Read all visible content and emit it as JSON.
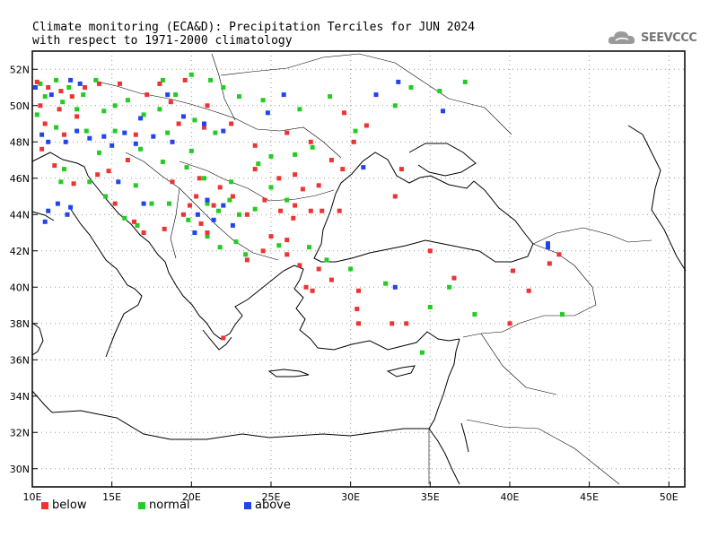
{
  "title": {
    "line1": "Climate monitoring (ECA&D): Precipitation Terciles for JUN 2024",
    "line2": "with respect to 1971-2000 climatology"
  },
  "logo": {
    "text": "SEEVCCC",
    "icon": "cloud-icon"
  },
  "axes": {
    "lon_range": [
      10,
      51
    ],
    "lat_range": [
      29,
      53
    ],
    "x_ticks": [
      {
        "lon": 10,
        "label": "10E"
      },
      {
        "lon": 15,
        "label": "15E"
      },
      {
        "lon": 20,
        "label": "20E"
      },
      {
        "lon": 25,
        "label": "25E"
      },
      {
        "lon": 30,
        "label": "30E"
      },
      {
        "lon": 35,
        "label": "35E"
      },
      {
        "lon": 40,
        "label": "40E"
      },
      {
        "lon": 45,
        "label": "45E"
      },
      {
        "lon": 50,
        "label": "50E"
      }
    ],
    "y_ticks": [
      {
        "lat": 30,
        "label": "30N"
      },
      {
        "lat": 32,
        "label": "32N"
      },
      {
        "lat": 34,
        "label": "34N"
      },
      {
        "lat": 36,
        "label": "36N"
      },
      {
        "lat": 38,
        "label": "38N"
      },
      {
        "lat": 40,
        "label": "40N"
      },
      {
        "lat": 42,
        "label": "42N"
      },
      {
        "lat": 44,
        "label": "44N"
      },
      {
        "lat": 46,
        "label": "46N"
      },
      {
        "lat": 48,
        "label": "48N"
      },
      {
        "lat": 50,
        "label": "50N"
      },
      {
        "lat": 52,
        "label": "52N"
      }
    ],
    "grid": "dotted"
  },
  "legend": {
    "items": [
      {
        "key": "below",
        "label": "below",
        "color": "#ee3333"
      },
      {
        "key": "normal",
        "label": "normal",
        "color": "#22cc22"
      },
      {
        "key": "above",
        "label": "above",
        "color": "#2244ee"
      }
    ]
  },
  "colors": {
    "below": "#ee3333",
    "normal": "#22cc22",
    "above": "#2244ee",
    "coast": "#000000"
  },
  "chart_data": {
    "type": "scatter",
    "stations": {
      "below": [
        [
          10.3,
          51.3
        ],
        [
          11.0,
          51.0
        ],
        [
          11.8,
          50.8
        ],
        [
          12.5,
          50.5
        ],
        [
          13.3,
          51.0
        ],
        [
          14.2,
          51.2
        ],
        [
          10.5,
          50.0
        ],
        [
          11.7,
          49.8
        ],
        [
          12.8,
          49.4
        ],
        [
          10.8,
          49.0
        ],
        [
          12.0,
          48.4
        ],
        [
          10.6,
          47.6
        ],
        [
          11.4,
          46.7
        ],
        [
          12.6,
          45.7
        ],
        [
          14.1,
          46.2
        ],
        [
          14.8,
          46.4
        ],
        [
          16.0,
          47.0
        ],
        [
          16.5,
          48.4
        ],
        [
          17.2,
          50.6
        ],
        [
          18.0,
          51.2
        ],
        [
          18.7,
          50.2
        ],
        [
          19.6,
          51.4
        ],
        [
          21.0,
          50.0
        ],
        [
          19.2,
          49.0
        ],
        [
          20.8,
          48.8
        ],
        [
          22.5,
          49.0
        ],
        [
          15.5,
          51.2
        ],
        [
          26.0,
          48.5
        ],
        [
          27.5,
          48.0
        ],
        [
          28.8,
          47.0
        ],
        [
          24.0,
          46.5
        ],
        [
          25.5,
          46.0
        ],
        [
          26.5,
          46.2
        ],
        [
          27.0,
          45.4
        ],
        [
          24.6,
          44.8
        ],
        [
          25.6,
          44.2
        ],
        [
          26.5,
          44.5
        ],
        [
          27.5,
          44.2
        ],
        [
          28.2,
          44.2
        ],
        [
          23.5,
          44.0
        ],
        [
          22.6,
          45.0
        ],
        [
          21.8,
          45.5
        ],
        [
          20.3,
          45.0
        ],
        [
          19.9,
          44.5
        ],
        [
          19.5,
          44.0
        ],
        [
          20.6,
          43.5
        ],
        [
          21.0,
          43.0
        ],
        [
          15.2,
          44.6
        ],
        [
          16.4,
          43.6
        ],
        [
          17.0,
          43.0
        ],
        [
          18.3,
          43.2
        ],
        [
          25.0,
          42.8
        ],
        [
          26.0,
          42.6
        ],
        [
          24.5,
          42.0
        ],
        [
          26.0,
          41.8
        ],
        [
          23.5,
          41.5
        ],
        [
          26.8,
          41.2
        ],
        [
          28.0,
          41.0
        ],
        [
          27.2,
          40.0
        ],
        [
          27.6,
          39.8
        ],
        [
          28.8,
          40.4
        ],
        [
          30.5,
          39.8
        ],
        [
          30.4,
          38.8
        ],
        [
          30.5,
          38.0
        ],
        [
          32.6,
          38.0
        ],
        [
          40.2,
          40.9
        ],
        [
          42.5,
          41.3
        ],
        [
          43.1,
          41.8
        ],
        [
          40.0,
          38.0
        ],
        [
          41.2,
          39.8
        ],
        [
          36.5,
          40.5
        ],
        [
          35.0,
          42.0
        ],
        [
          29.6,
          49.6
        ],
        [
          31.0,
          48.9
        ],
        [
          30.2,
          48.0
        ],
        [
          24.0,
          47.8
        ],
        [
          26.4,
          43.8
        ],
        [
          28.0,
          45.6
        ],
        [
          29.3,
          44.2
        ],
        [
          18.8,
          45.8
        ],
        [
          20.5,
          46.0
        ],
        [
          21.4,
          44.5
        ],
        [
          29.5,
          46.5
        ],
        [
          33.2,
          46.5
        ],
        [
          32.8,
          45.0
        ],
        [
          22.0,
          37.2
        ],
        [
          33.5,
          38.0
        ]
      ],
      "normal": [
        [
          10.5,
          51.2
        ],
        [
          11.5,
          51.4
        ],
        [
          12.3,
          51.0
        ],
        [
          13.2,
          50.6
        ],
        [
          14.0,
          51.4
        ],
        [
          10.8,
          50.5
        ],
        [
          11.9,
          50.2
        ],
        [
          12.8,
          49.8
        ],
        [
          10.3,
          49.5
        ],
        [
          11.5,
          48.8
        ],
        [
          13.4,
          48.6
        ],
        [
          14.5,
          49.7
        ],
        [
          15.2,
          50.0
        ],
        [
          16.0,
          50.3
        ],
        [
          17.0,
          49.5
        ],
        [
          18.0,
          49.8
        ],
        [
          19.0,
          50.6
        ],
        [
          20.0,
          51.7
        ],
        [
          21.2,
          51.4
        ],
        [
          22.0,
          51.0
        ],
        [
          23.0,
          50.5
        ],
        [
          20.2,
          49.2
        ],
        [
          21.5,
          48.5
        ],
        [
          18.5,
          48.5
        ],
        [
          16.8,
          47.6
        ],
        [
          18.2,
          46.9
        ],
        [
          19.7,
          46.6
        ],
        [
          20.8,
          46.0
        ],
        [
          22.5,
          45.8
        ],
        [
          24.2,
          46.8
        ],
        [
          25.0,
          47.2
        ],
        [
          26.5,
          47.3
        ],
        [
          27.6,
          47.7
        ],
        [
          26.0,
          44.8
        ],
        [
          24.0,
          44.3
        ],
        [
          23.0,
          44.0
        ],
        [
          21.7,
          44.2
        ],
        [
          21.0,
          44.6
        ],
        [
          19.8,
          43.7
        ],
        [
          18.6,
          44.6
        ],
        [
          17.5,
          44.6
        ],
        [
          16.6,
          43.4
        ],
        [
          15.8,
          43.8
        ],
        [
          14.6,
          45.0
        ],
        [
          13.6,
          45.8
        ],
        [
          12.0,
          46.5
        ],
        [
          11.8,
          45.8
        ],
        [
          22.8,
          42.5
        ],
        [
          21.0,
          42.8
        ],
        [
          23.4,
          41.8
        ],
        [
          25.5,
          42.3
        ],
        [
          27.4,
          42.2
        ],
        [
          28.5,
          41.5
        ],
        [
          34.5,
          36.4
        ],
        [
          35.0,
          38.9
        ],
        [
          37.8,
          38.5
        ],
        [
          43.3,
          38.5
        ],
        [
          36.2,
          40.0
        ],
        [
          32.2,
          40.2
        ],
        [
          30.0,
          41.0
        ],
        [
          33.8,
          51.0
        ],
        [
          35.6,
          50.8
        ],
        [
          37.2,
          51.3
        ],
        [
          30.3,
          48.6
        ],
        [
          28.7,
          50.5
        ],
        [
          32.8,
          50.0
        ],
        [
          24.5,
          50.3
        ],
        [
          26.8,
          49.8
        ],
        [
          15.2,
          48.6
        ],
        [
          14.2,
          47.4
        ],
        [
          16.5,
          45.6
        ],
        [
          20.0,
          47.5
        ],
        [
          25.0,
          45.5
        ],
        [
          22.4,
          44.8
        ],
        [
          18.2,
          51.4
        ],
        [
          21.8,
          42.2
        ]
      ],
      "above": [
        [
          10.2,
          51.0
        ],
        [
          11.2,
          50.6
        ],
        [
          12.4,
          51.4
        ],
        [
          13.0,
          51.2
        ],
        [
          10.6,
          48.4
        ],
        [
          11.0,
          48.0
        ],
        [
          12.1,
          48.0
        ],
        [
          12.8,
          48.6
        ],
        [
          13.6,
          48.2
        ],
        [
          14.5,
          48.3
        ],
        [
          15.0,
          47.8
        ],
        [
          15.8,
          48.5
        ],
        [
          16.5,
          47.9
        ],
        [
          17.6,
          48.3
        ],
        [
          18.8,
          48.0
        ],
        [
          19.5,
          49.4
        ],
        [
          20.8,
          49.0
        ],
        [
          22.0,
          48.6
        ],
        [
          24.8,
          49.6
        ],
        [
          25.8,
          50.6
        ],
        [
          31.6,
          50.6
        ],
        [
          33.0,
          51.3
        ],
        [
          35.8,
          49.7
        ],
        [
          30.8,
          46.6
        ],
        [
          21.0,
          44.8
        ],
        [
          20.4,
          44.0
        ],
        [
          21.4,
          43.7
        ],
        [
          22.0,
          44.5
        ],
        [
          22.6,
          43.4
        ],
        [
          20.2,
          43.0
        ],
        [
          15.4,
          45.8
        ],
        [
          11.0,
          44.2
        ],
        [
          11.6,
          44.6
        ],
        [
          12.2,
          44.0
        ],
        [
          10.8,
          43.6
        ],
        [
          12.4,
          44.4
        ],
        [
          42.4,
          42.2
        ],
        [
          42.4,
          42.4
        ],
        [
          32.8,
          40.0
        ],
        [
          16.8,
          49.3
        ],
        [
          18.5,
          50.6
        ],
        [
          17.0,
          44.6
        ]
      ]
    }
  }
}
